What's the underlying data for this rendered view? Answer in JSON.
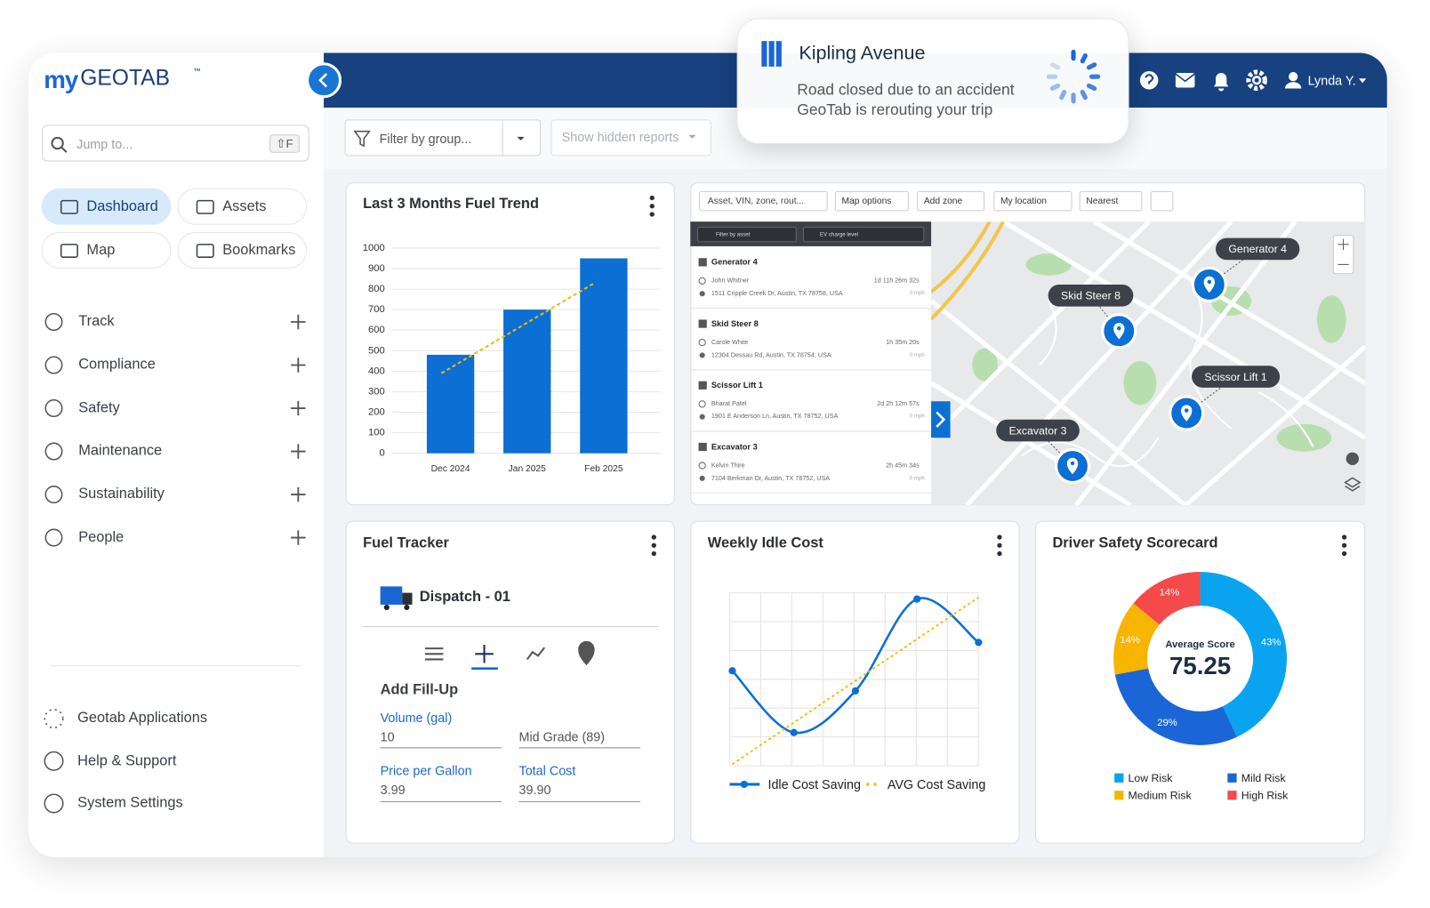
{
  "brand": {
    "prefix": "my",
    "name": "GEOTAB",
    "mark": "™"
  },
  "sidebar": {
    "search": "Jump to...",
    "shortcut": "⇧F",
    "quick_links": [
      "Dashboard",
      "Assets",
      "Map",
      "Bookmarks"
    ],
    "menu": [
      "Track",
      "Compliance",
      "Safety",
      "Maintenance",
      "Sustainability",
      "People"
    ],
    "footer": [
      "Geotab Applications",
      "Help & Support",
      "System Settings"
    ]
  },
  "toolbar": {
    "group_filter": "Filter by group...",
    "hidden_reports": "Show hidden reports"
  },
  "notification": {
    "title": "Kipling Avenue",
    "lines": [
      "Road closed due to an accident",
      "GeoTab is rerouting your trip"
    ]
  },
  "user": "Lynda Y.",
  "map": {
    "search": "Asset, VIN, zone, rout...",
    "options": [
      "Map options",
      "Add zone",
      "My location",
      "Nearest"
    ],
    "asset_filter": "Filter by asset",
    "ev_filter": "EV charge level",
    "assets": [
      {
        "name": "Generator 4",
        "driver": "John Whitner",
        "duration": "1d 11h 26m 32s",
        "address": "1511 Cripple Creek Dr, Austin, TX 78758, USA",
        "speed": "0 mph"
      },
      {
        "name": "Skid Steer 8",
        "driver": "Carole White",
        "duration": "1h 35m 20s",
        "address": "12304 Dessau Rd, Austin, TX 78754, USA",
        "speed": "0 mph"
      },
      {
        "name": "Scissor Lift 1",
        "driver": "Bharat Patel",
        "duration": "2d 2h 12m 57s",
        "address": "1901 E Anderson Ln, Austin, TX 78752, USA",
        "speed": "0 mph"
      },
      {
        "name": "Excavator 3",
        "driver": "Kelvin Thire",
        "duration": "2h 45m 34s",
        "address": "7104 Berkman Dr, Austin, TX 78752, USA",
        "speed": "0 mph"
      }
    ]
  },
  "fuel_tracker": {
    "title": "Fuel Tracker",
    "vehicle": "Dispatch - 01",
    "form_title": "Add Fill-Up",
    "fields": [
      {
        "label": "Volume (gal)",
        "value": "10"
      },
      {
        "value": "Mid Grade (89)"
      },
      {
        "label": "Price per Gallon",
        "value": "3.99"
      },
      {
        "label": "Total Cost",
        "value": "39.90"
      }
    ]
  },
  "chart_data": [
    {
      "type": "bar",
      "title": "Last 3 Months Fuel Trend",
      "categories": [
        "Dec 2024",
        "Jan 2025",
        "Feb 2025"
      ],
      "values": [
        480,
        700,
        950
      ],
      "color": "#0b6fd3",
      "trend": {
        "values": [
          390,
          610,
          830
        ],
        "color": "#f5b800"
      },
      "ylim": [
        0,
        1000
      ],
      "yticks": [
        0,
        100,
        200,
        300,
        400,
        500,
        600,
        700,
        800,
        900,
        1000
      ],
      "grid": true
    },
    {
      "type": "line",
      "title": "Weekly Idle Cost",
      "categories": [
        null,
        null,
        null,
        null,
        null
      ],
      "ylim": [
        0,
        100
      ],
      "grid": true,
      "series": [
        {
          "name": "Idle Cost Saving",
          "color": "#0b6fd3",
          "values": [
            56,
            19,
            44,
            99,
            73
          ]
        },
        {
          "name": "AVG Cost Saving",
          "color": "#f5b800",
          "dashed": true,
          "values": [
            0,
            25,
            50,
            75,
            100
          ]
        }
      ]
    },
    {
      "type": "donut",
      "title": "Driver Safety Scorecard",
      "center_label": "Average Score",
      "center_value": 75.25,
      "categories": [
        "Low Risk",
        "Mild Risk",
        "Medium Risk",
        "High Risk"
      ],
      "values": [
        43,
        29,
        14,
        14
      ],
      "value_labels": [
        "43%",
        "29%",
        "14%",
        "14%"
      ],
      "colors": [
        "#0aa3f0",
        "#1b66d6",
        "#f7b500",
        "#f44a4a"
      ]
    }
  ]
}
